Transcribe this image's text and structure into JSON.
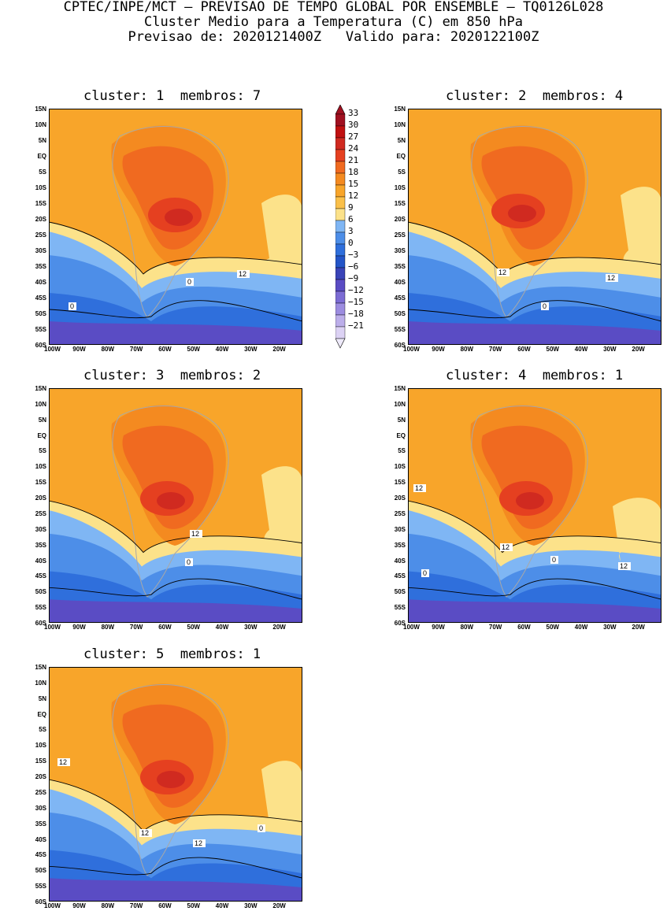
{
  "header": {
    "line1": "CPTEC/INPE/MCT – PREVISAO DE TEMPO GLOBAL POR ENSEMBLE – TQ0126L028",
    "line2": "Cluster Medio para a Temperatura (C) em 850 hPa",
    "line3": "Previsao de: 2020121400Z   Valido para: 2020122100Z"
  },
  "panels": [
    {
      "title": "cluster: 1  membros: 7",
      "contour_labels": [
        "0",
        "0",
        "12"
      ]
    },
    {
      "title": "cluster: 2  membros: 4",
      "contour_labels": [
        "0",
        "12",
        "12"
      ]
    },
    {
      "title": "cluster: 3  membros: 2",
      "contour_labels": [
        "0",
        "12"
      ]
    },
    {
      "title": "cluster: 4  membros: 1",
      "contour_labels": [
        "12",
        "0",
        "0",
        "12",
        "12"
      ]
    },
    {
      "title": "cluster: 5  membros: 1",
      "contour_labels": [
        "12",
        "12",
        "0",
        "12"
      ]
    }
  ],
  "lat_labels": [
    "15N",
    "10N",
    "5N",
    "EQ",
    "5S",
    "10S",
    "15S",
    "20S",
    "25S",
    "30S",
    "35S",
    "40S",
    "45S",
    "50S",
    "55S",
    "60S"
  ],
  "lon_labels": [
    "100W",
    "90W",
    "80W",
    "70W",
    "60W",
    "50W",
    "40W",
    "30W",
    "20W"
  ],
  "colorbar": {
    "labels": [
      "33",
      "30",
      "27",
      "24",
      "21",
      "18",
      "15",
      "12",
      "9",
      "6",
      "3",
      "0",
      "-3",
      "-6",
      "-9",
      "-12",
      "-15",
      "-18",
      "-21"
    ],
    "colors": [
      "#a01020",
      "#c01010",
      "#d02a20",
      "#e54020",
      "#f06a20",
      "#f48a20",
      "#f8a52a",
      "#fac04a",
      "#fce28a",
      "#7fb6f4",
      "#4d8ee8",
      "#2f6fdc",
      "#2455c8",
      "#3a44b8",
      "#5a4cc4",
      "#7c6cd4",
      "#9c8ce0",
      "#bcaeea",
      "#dcd2f4"
    ]
  }
}
